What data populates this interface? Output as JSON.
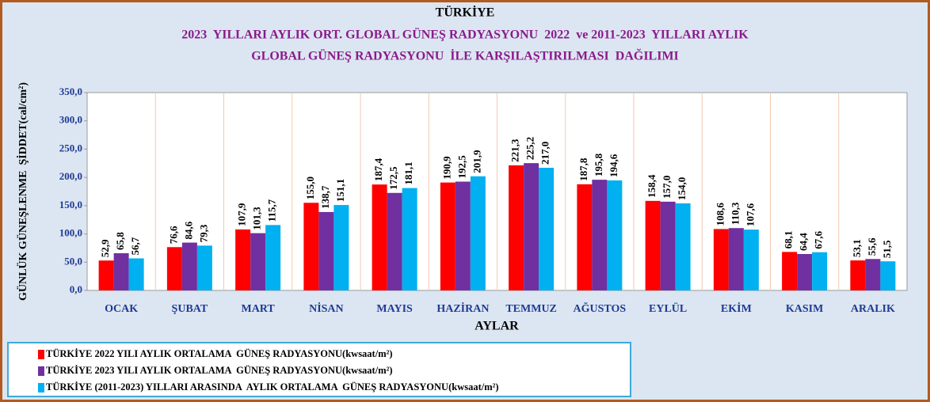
{
  "chart_data": {
    "type": "bar",
    "title": "TÜRKİYE",
    "subtitle": [
      "2023  YILLARI AYLIK ORT. GLOBAL GÜNEŞ RADYASYONU  2022  ve 2011-2023  YILLARI AYLIK",
      "GLOBAL GÜNEŞ RADYASYONU  İLE KARŞILAŞTIRILMASI  DAĞILIMI"
    ],
    "x_label": "AYLAR",
    "y_label": "GÜNLÜK GÜNEŞLENME  ŞİDDET(cal/cm²)",
    "categories": [
      "OCAK",
      "ŞUBAT",
      "MART",
      "NİSAN",
      "MAYIS",
      "HAZİRAN",
      "TEMMUZ",
      "AĞUSTOS",
      "EYLÜL",
      "EKİM",
      "KASIM",
      "ARALIK"
    ],
    "series": [
      {
        "name": "TÜRKİYE 2022 YILI AYLIK ORTALAMA  GÜNEŞ RADYASYONU(kwsaat/m²)",
        "color": "#ff0000",
        "values": [
          52.9,
          76.6,
          107.9,
          155.0,
          187.4,
          190.9,
          221.3,
          187.8,
          158.4,
          108.6,
          68.1,
          53.1
        ],
        "value_labels": [
          "52,9",
          "76,6",
          "107,9",
          "155,0",
          "187,4",
          "190,9",
          "221,3",
          "187,8",
          "158,4",
          "108,6",
          "68,1",
          "53,1"
        ]
      },
      {
        "name": "TÜRKİYE 2023 YILI AYLIK ORTALAMA  GÜNEŞ RADYASYONU(kwsaat/m²)",
        "color": "#7030a0",
        "values": [
          65.8,
          84.6,
          101.3,
          138.7,
          172.5,
          192.5,
          225.2,
          195.8,
          157.0,
          110.3,
          64.4,
          55.6
        ],
        "value_labels": [
          "65,8",
          "84,6",
          "101,3",
          "138,7",
          "172,5",
          "192,5",
          "225,2",
          "195,8",
          "157,0",
          "110,3",
          "64,4",
          "55,6"
        ]
      },
      {
        "name": "TÜRKİYE (2011-2023) YILLARI ARASINDA  AYLIK ORTALAMA  GÜNEŞ RADYASYONU(kwsaat/m²)",
        "color": "#00b0f0",
        "values": [
          56.7,
          79.3,
          115.7,
          151.1,
          181.1,
          201.9,
          217.0,
          194.6,
          154.0,
          107.6,
          67.6,
          51.5
        ],
        "value_labels": [
          "56,7",
          "79,3",
          "115,7",
          "151,1",
          "181,1",
          "201,9",
          "217,0",
          "194,6",
          "154,0",
          "107,6",
          "67,6",
          "51,5"
        ]
      }
    ],
    "ylim": [
      0,
      350
    ],
    "yticks": [
      {
        "value": 0,
        "label": "0,0"
      },
      {
        "value": 50,
        "label": "50,0"
      },
      {
        "value": 100,
        "label": "100,0"
      },
      {
        "value": 150,
        "label": "150,0"
      },
      {
        "value": 200,
        "label": "200,0"
      },
      {
        "value": 250,
        "label": "250,0"
      },
      {
        "value": 300,
        "label": "300,0"
      },
      {
        "value": 350,
        "label": "350,0"
      }
    ],
    "legend": "bottom-left"
  }
}
